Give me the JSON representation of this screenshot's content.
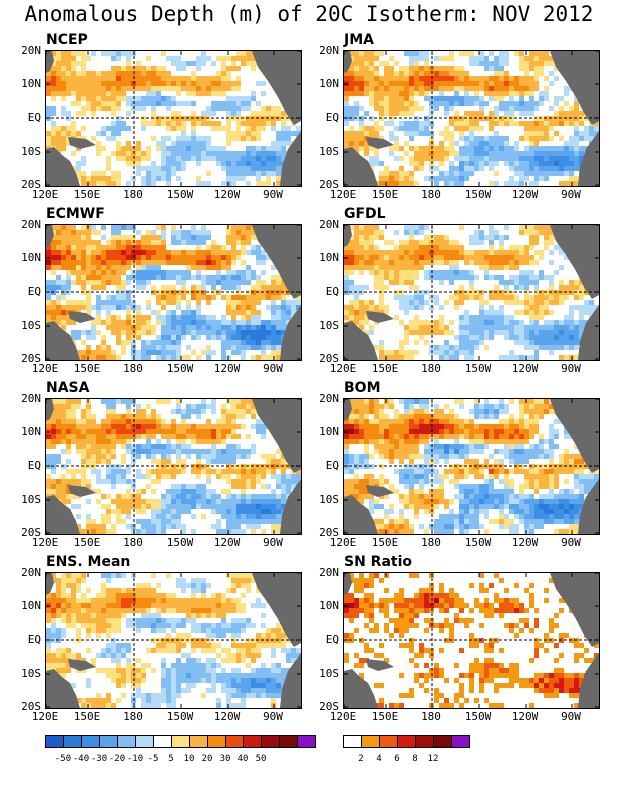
{
  "title": "Anomalous Depth (m) of 20C Isotherm: NOV 2012",
  "axes": {
    "lat_labels": [
      "20N",
      "10N",
      "EQ",
      "10S",
      "20S"
    ],
    "lon_labels": [
      "120E",
      "150E",
      "180",
      "150W",
      "120W",
      "90W"
    ]
  },
  "panels": [
    {
      "label": "NCEP",
      "type": "anomaly"
    },
    {
      "label": "JMA",
      "type": "anomaly"
    },
    {
      "label": "ECMWF",
      "type": "anomaly"
    },
    {
      "label": "GFDL",
      "type": "anomaly"
    },
    {
      "label": "NASA",
      "type": "anomaly"
    },
    {
      "label": "BOM",
      "type": "anomaly"
    },
    {
      "label": "ENS. Mean",
      "type": "anomaly"
    },
    {
      "label": "SN Ratio",
      "type": "ratio"
    }
  ],
  "colorbar_anomaly": {
    "labels": [
      "-50",
      "-40",
      "-30",
      "-20",
      "-10",
      "-5",
      "5",
      "10",
      "20",
      "30",
      "40",
      "50"
    ],
    "colors": [
      "#1e5cc8",
      "#2a7ad8",
      "#3c8ee6",
      "#5aa4ee",
      "#82beF4",
      "#b4dcf8",
      "#ffffff",
      "#fde080",
      "#fbb440",
      "#f58a10",
      "#ee4a10",
      "#cc1a10",
      "#9a0c0c",
      "#7a0a0a",
      "#8a10c8"
    ]
  },
  "colorbar_ratio": {
    "labels": [
      "2",
      "4",
      "6",
      "8",
      "12"
    ],
    "colors": [
      "#ffffff",
      "#f59a10",
      "#ee5a10",
      "#d61a10",
      "#a40c0c",
      "#7a0808",
      "#8a10c8"
    ]
  },
  "colors": {
    "land": "#696969",
    "background": "#ffffff"
  }
}
